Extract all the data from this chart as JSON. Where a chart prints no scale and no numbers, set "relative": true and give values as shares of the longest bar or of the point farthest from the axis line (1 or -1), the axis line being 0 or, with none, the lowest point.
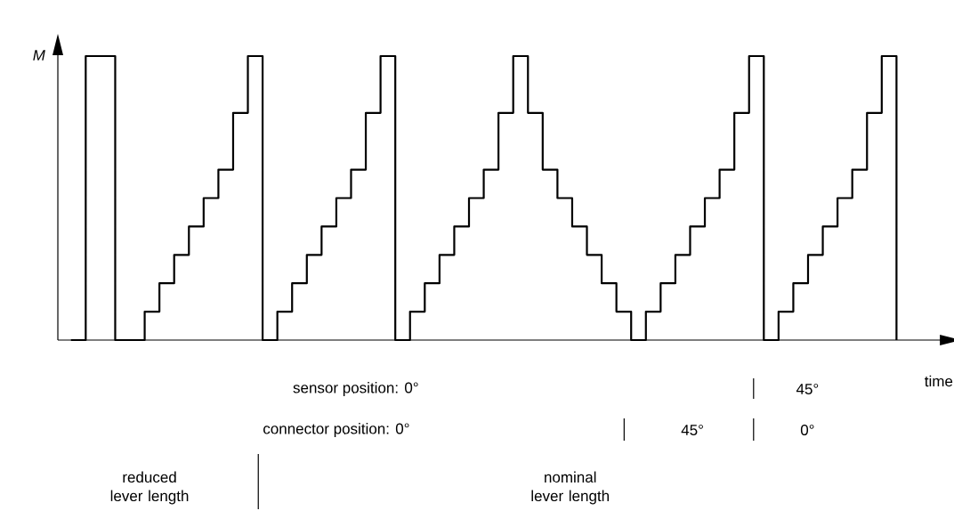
{
  "chart_data": {
    "type": "step",
    "relative": true,
    "xlabel": "time",
    "ylabel": "M",
    "color": "#000000",
    "categories": [
      null,
      null,
      null,
      null,
      null,
      null,
      null,
      null,
      null,
      null,
      null,
      null,
      null,
      null,
      null,
      null,
      null,
      null,
      null,
      null,
      null,
      null,
      null,
      null,
      null,
      null,
      null,
      null,
      null,
      null,
      null,
      null,
      null,
      null,
      null,
      null,
      null,
      null,
      null,
      null,
      null,
      null,
      null,
      null,
      null,
      null,
      null,
      null,
      null,
      null,
      null,
      null,
      null,
      null,
      null,
      null,
      null
    ],
    "values": [
      0,
      1,
      1,
      0,
      0,
      0.1,
      0.2,
      0.3,
      0.4,
      0.5,
      0.6,
      0.8,
      1,
      0,
      0.1,
      0.2,
      0.3,
      0.4,
      0.5,
      0.6,
      0.8,
      1,
      0,
      0.1,
      0.2,
      0.3,
      0.4,
      0.5,
      0.6,
      0.8,
      1,
      0.8,
      0.6,
      0.5,
      0.4,
      0.3,
      0.2,
      0.1,
      0,
      0.1,
      0.2,
      0.3,
      0.4,
      0.5,
      0.6,
      0.8,
      1,
      0,
      0.1,
      0.2,
      0.3,
      0.4,
      0.5,
      0.6,
      0.8,
      1,
      0
    ],
    "annotations": [
      "sensor position: 0°",
      "45°",
      "connector position: 0°",
      "45°",
      "0°",
      "reduced lever length",
      "nominal lever length"
    ]
  }
}
